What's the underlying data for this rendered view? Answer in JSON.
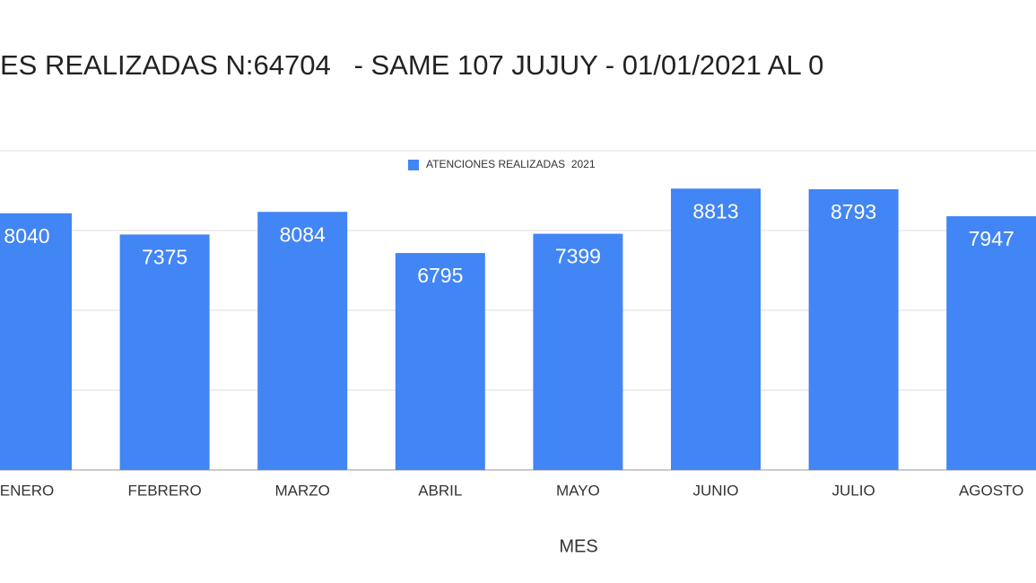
{
  "chart_data": {
    "type": "bar",
    "title": "ES REALIZADAS N:64704   - SAME 107 JUJUY - 01/01/2021 AL 0",
    "x_label": "MES",
    "categories": [
      "ENERO",
      "FEBRERO",
      "MARZO",
      "ABRIL",
      "MAYO",
      "JUNIO",
      "JULIO",
      "AGOSTO"
    ],
    "series": [
      {
        "name": "ATENCIONES REALIZADAS  2021",
        "color": "#4285f4",
        "values": [
          8040,
          7375,
          8084,
          6795,
          7399,
          8813,
          8793,
          7947
        ]
      }
    ],
    "ylim": [
      0,
      10000
    ],
    "yticks": [
      0,
      2500,
      5000,
      7500,
      10000
    ],
    "grid": true
  }
}
